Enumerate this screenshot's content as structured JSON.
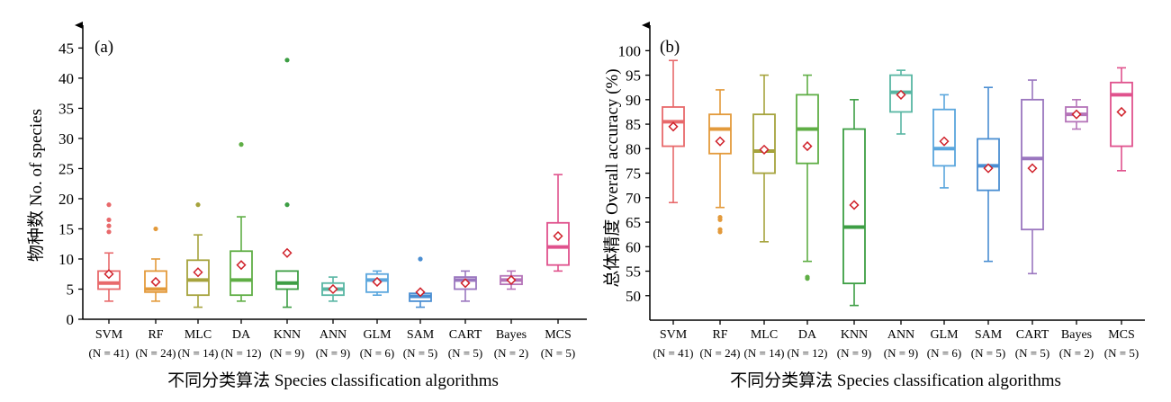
{
  "chart_data": [
    {
      "type": "box",
      "panel_label": "(a)",
      "xlabel": "不同分类算法 Species classification algorithms",
      "ylabel": "物种数 No. of species",
      "ylim": [
        0,
        47
      ],
      "yticks": [
        0,
        5,
        10,
        15,
        20,
        25,
        30,
        35,
        40,
        45
      ],
      "categories": [
        "SVM",
        "RF",
        "MLC",
        "DA",
        "KNN",
        "ANN",
        "GLM",
        "SAM",
        "CART",
        "Bayes",
        "MCS"
      ],
      "n_labels": [
        "(N = 41)",
        "(N = 24)",
        "(N = 14)",
        "(N = 12)",
        "(N = 9)",
        "(N = 9)",
        "(N = 6)",
        "(N = 5)",
        "(N = 5)",
        "(N = 2)",
        "(N = 5)"
      ],
      "boxes": [
        {
          "min": 3,
          "q1": 5,
          "median": 6,
          "q3": 8,
          "max": 11,
          "mean": 7.5,
          "outliers": [
            14.5,
            15.5,
            16.5,
            19
          ]
        },
        {
          "min": 3,
          "q1": 4.5,
          "median": 5,
          "q3": 8,
          "max": 10,
          "mean": 6.2,
          "outliers": [
            15
          ]
        },
        {
          "min": 2,
          "q1": 4,
          "median": 6.5,
          "q3": 9.8,
          "max": 14,
          "mean": 7.8,
          "outliers": [
            19
          ]
        },
        {
          "min": 3,
          "q1": 4,
          "median": 6.5,
          "q3": 11.3,
          "max": 17,
          "mean": 9,
          "outliers": [
            29
          ]
        },
        {
          "min": 2,
          "q1": 5,
          "median": 6,
          "q3": 8,
          "max": 8,
          "mean": 11,
          "outliers": [
            19,
            43
          ]
        },
        {
          "min": 3,
          "q1": 4,
          "median": 5,
          "q3": 6,
          "max": 7,
          "mean": 5,
          "outliers": []
        },
        {
          "min": 4,
          "q1": 4.5,
          "median": 6.5,
          "q3": 7.5,
          "max": 8,
          "mean": 6.2,
          "outliers": []
        },
        {
          "min": 2,
          "q1": 3,
          "median": 3.8,
          "q3": 4.3,
          "max": 4.5,
          "mean": 4.5,
          "outliers": [
            10
          ]
        },
        {
          "min": 3,
          "q1": 5,
          "median": 6.5,
          "q3": 7,
          "max": 8,
          "mean": 6,
          "outliers": []
        },
        {
          "min": 5,
          "q1": 5.8,
          "median": 6.5,
          "q3": 7.2,
          "max": 8,
          "mean": 6.5,
          "outliers": []
        },
        {
          "min": 8,
          "q1": 9,
          "median": 12,
          "q3": 16,
          "max": 24,
          "mean": 13.8,
          "outliers": []
        }
      ]
    },
    {
      "type": "box",
      "panel_label": "(b)",
      "xlabel": "不同分类算法 Species classification algorithms",
      "ylabel": "总体精度 Overall accuracy (%)",
      "ylim": [
        45,
        103
      ],
      "yticks": [
        50,
        55,
        60,
        65,
        70,
        75,
        80,
        85,
        90,
        95,
        100
      ],
      "categories": [
        "SVM",
        "RF",
        "MLC",
        "DA",
        "KNN",
        "ANN",
        "GLM",
        "SAM",
        "CART",
        "Bayes",
        "MCS"
      ],
      "n_labels": [
        "(N = 41)",
        "(N = 24)",
        "(N = 14)",
        "(N = 12)",
        "(N = 9)",
        "(N = 9)",
        "(N = 6)",
        "(N = 5)",
        "(N = 5)",
        "(N = 2)",
        "(N = 5)"
      ],
      "boxes": [
        {
          "min": 69,
          "q1": 80.5,
          "median": 85.5,
          "q3": 88.5,
          "max": 98,
          "mean": 84.5,
          "outliers": []
        },
        {
          "min": 68,
          "q1": 79,
          "median": 84,
          "q3": 87,
          "max": 92,
          "mean": 81.5,
          "outliers": [
            63,
            63.5,
            65.5,
            66
          ]
        },
        {
          "min": 61,
          "q1": 75,
          "median": 79.5,
          "q3": 87,
          "max": 95,
          "mean": 79.8,
          "outliers": []
        },
        {
          "min": 57,
          "q1": 77,
          "median": 84,
          "q3": 91,
          "max": 95,
          "mean": 80.5,
          "outliers": [
            53.5,
            53.8
          ]
        },
        {
          "min": 48,
          "q1": 52.5,
          "median": 64,
          "q3": 84,
          "max": 90,
          "mean": 68.5,
          "outliers": []
        },
        {
          "min": 83,
          "q1": 87.5,
          "median": 91.5,
          "q3": 95,
          "max": 96,
          "mean": 91,
          "outliers": []
        },
        {
          "min": 72,
          "q1": 76.5,
          "median": 80,
          "q3": 88,
          "max": 91,
          "mean": 81.5,
          "outliers": []
        },
        {
          "min": 57,
          "q1": 71.5,
          "median": 76.5,
          "q3": 82,
          "max": 92.5,
          "mean": 76,
          "outliers": []
        },
        {
          "min": 54.5,
          "q1": 63.5,
          "median": 78,
          "q3": 90,
          "max": 94,
          "mean": 76,
          "outliers": []
        },
        {
          "min": 84,
          "q1": 85.5,
          "median": 87,
          "q3": 88.5,
          "max": 90,
          "mean": 87,
          "outliers": []
        },
        {
          "min": 75.5,
          "q1": 80.5,
          "median": 91,
          "q3": 93.5,
          "max": 96.5,
          "mean": 87.5,
          "outliers": []
        }
      ]
    }
  ],
  "colors": {
    "series": [
      "#e8696b",
      "#e39a3b",
      "#a6a33d",
      "#5fae45",
      "#3d9e44",
      "#58b6a3",
      "#5aa6dd",
      "#4a8ed2",
      "#9a76bf",
      "#b574b9",
      "#e0528d"
    ],
    "mean_marker": "#d0212a",
    "axis": "#000000"
  }
}
